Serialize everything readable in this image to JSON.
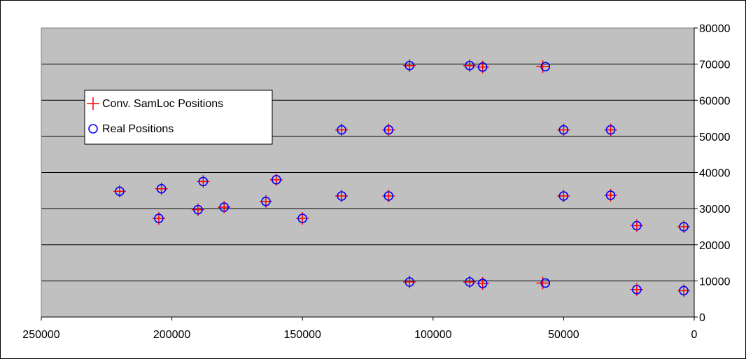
{
  "chart_data": {
    "type": "scatter",
    "title": "",
    "xlabel": "",
    "ylabel": "",
    "xlim": [
      250000,
      0
    ],
    "ylim": [
      0,
      80000
    ],
    "x_reversed": true,
    "y_axis_side": "right",
    "grid": "horizontal",
    "plot_background": "#c0c0c0",
    "legend_position": "left",
    "x_ticks": [
      250000,
      200000,
      150000,
      100000,
      50000,
      0
    ],
    "x_tick_labels": [
      "250000",
      "200000",
      "150000",
      "100000",
      "50000",
      "0"
    ],
    "y_ticks": [
      0,
      10000,
      20000,
      30000,
      40000,
      50000,
      60000,
      70000,
      80000
    ],
    "y_tick_labels": [
      "0",
      "10000",
      "20000",
      "30000",
      "40000",
      "50000",
      "60000",
      "70000",
      "80000"
    ],
    "series": [
      {
        "name": "Conv. SamLoc Positions",
        "marker": "plus",
        "color": "#ff0000",
        "points": [
          [
            220000,
            34800
          ],
          [
            204000,
            35500
          ],
          [
            205000,
            27300
          ],
          [
            188000,
            37500
          ],
          [
            190000,
            29700
          ],
          [
            180000,
            30400
          ],
          [
            160000,
            38000
          ],
          [
            164000,
            32000
          ],
          [
            150000,
            27300
          ],
          [
            135000,
            51800
          ],
          [
            135000,
            33500
          ],
          [
            117000,
            51800
          ],
          [
            117000,
            33500
          ],
          [
            109000,
            69600
          ],
          [
            109000,
            9700
          ],
          [
            86000,
            69600
          ],
          [
            86000,
            9700
          ],
          [
            81000,
            69200
          ],
          [
            81000,
            9300
          ],
          [
            58000,
            69300
          ],
          [
            58000,
            9400
          ],
          [
            50000,
            51800
          ],
          [
            50000,
            33500
          ],
          [
            32000,
            51800
          ],
          [
            32000,
            33700
          ],
          [
            22000,
            25300
          ],
          [
            22000,
            7600
          ],
          [
            4000,
            25000
          ],
          [
            4000,
            7300
          ]
        ]
      },
      {
        "name": "Real Positions",
        "marker": "circle",
        "color": "#0000ff",
        "points": [
          [
            220000,
            34800
          ],
          [
            204000,
            35500
          ],
          [
            205000,
            27300
          ],
          [
            188000,
            37500
          ],
          [
            190000,
            29700
          ],
          [
            180000,
            30400
          ],
          [
            160000,
            38000
          ],
          [
            164000,
            32000
          ],
          [
            150000,
            27300
          ],
          [
            135000,
            51800
          ],
          [
            135000,
            33500
          ],
          [
            117000,
            51800
          ],
          [
            117000,
            33500
          ],
          [
            109000,
            69600
          ],
          [
            109000,
            9700
          ],
          [
            86000,
            69600
          ],
          [
            86000,
            9700
          ],
          [
            81000,
            69200
          ],
          [
            81000,
            9300
          ],
          [
            57000,
            69300
          ],
          [
            57000,
            9400
          ],
          [
            50000,
            51800
          ],
          [
            50000,
            33500
          ],
          [
            32000,
            51800
          ],
          [
            32000,
            33700
          ],
          [
            22000,
            25300
          ],
          [
            22000,
            7600
          ],
          [
            4000,
            25000
          ],
          [
            4000,
            7300
          ]
        ]
      }
    ]
  }
}
